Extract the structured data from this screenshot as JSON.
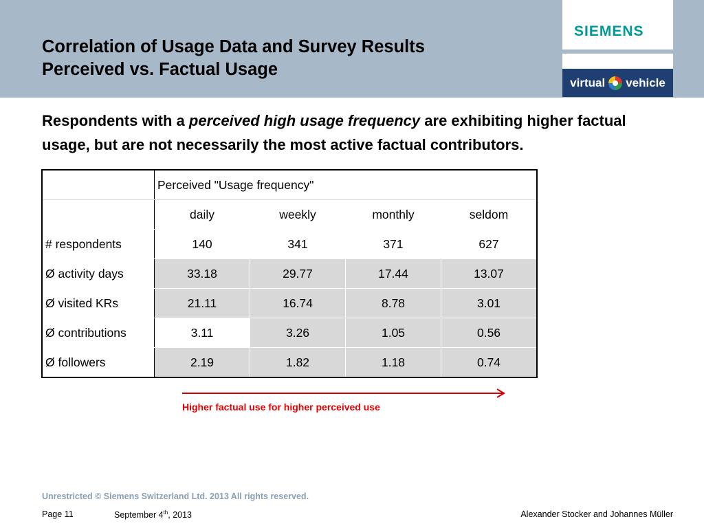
{
  "header": {
    "title_line1": "Correlation of Usage Data and Survey Results",
    "title_line2": "Perceived vs. Factual Usage",
    "siemens_logo": "SIEMENS",
    "vv_logo_left": "virtual",
    "vv_logo_right": "vehicle"
  },
  "subtitle": {
    "part1": "Respondents with a ",
    "emphasis": "perceived high usage frequency",
    "part2": " are exhibiting higher factual usage, but are not necessarily the most active factual contributors."
  },
  "table": {
    "header_title": "Perceived \"Usage frequency\"",
    "columns": [
      "daily",
      "weekly",
      "monthly",
      "seldom"
    ],
    "rows": [
      {
        "label": "# respondents",
        "values": [
          "140",
          "341",
          "371",
          "627"
        ]
      },
      {
        "label": "Ø activity days",
        "values": [
          "33.18",
          "29.77",
          "17.44",
          "13.07"
        ]
      },
      {
        "label": "Ø visited KRs",
        "values": [
          "21.11",
          "16.74",
          "8.78",
          "3.01"
        ]
      },
      {
        "label": "Ø contributions",
        "values": [
          "3.11",
          "3.26",
          "1.05",
          "0.56"
        ]
      },
      {
        "label": "Ø followers",
        "values": [
          "2.19",
          "1.82",
          "1.18",
          "0.74"
        ]
      }
    ]
  },
  "annotation": {
    "caption": "Higher factual use for higher perceived use",
    "color": "#e30000"
  },
  "footer": {
    "copyright": "Unrestricted © Siemens Switzerland Ltd. 2013 All rights reserved.",
    "page": "Page 11",
    "date_main": "September 4",
    "date_sup": "th",
    "date_year": ", 2013",
    "authors": "Alexander Stocker and Johannes Müller"
  },
  "colors": {
    "header_band": "#a7b9c8",
    "siemens_teal": "#009999",
    "vv_navy": "#1f3f73",
    "grey_cell": "#d8d8d8"
  }
}
